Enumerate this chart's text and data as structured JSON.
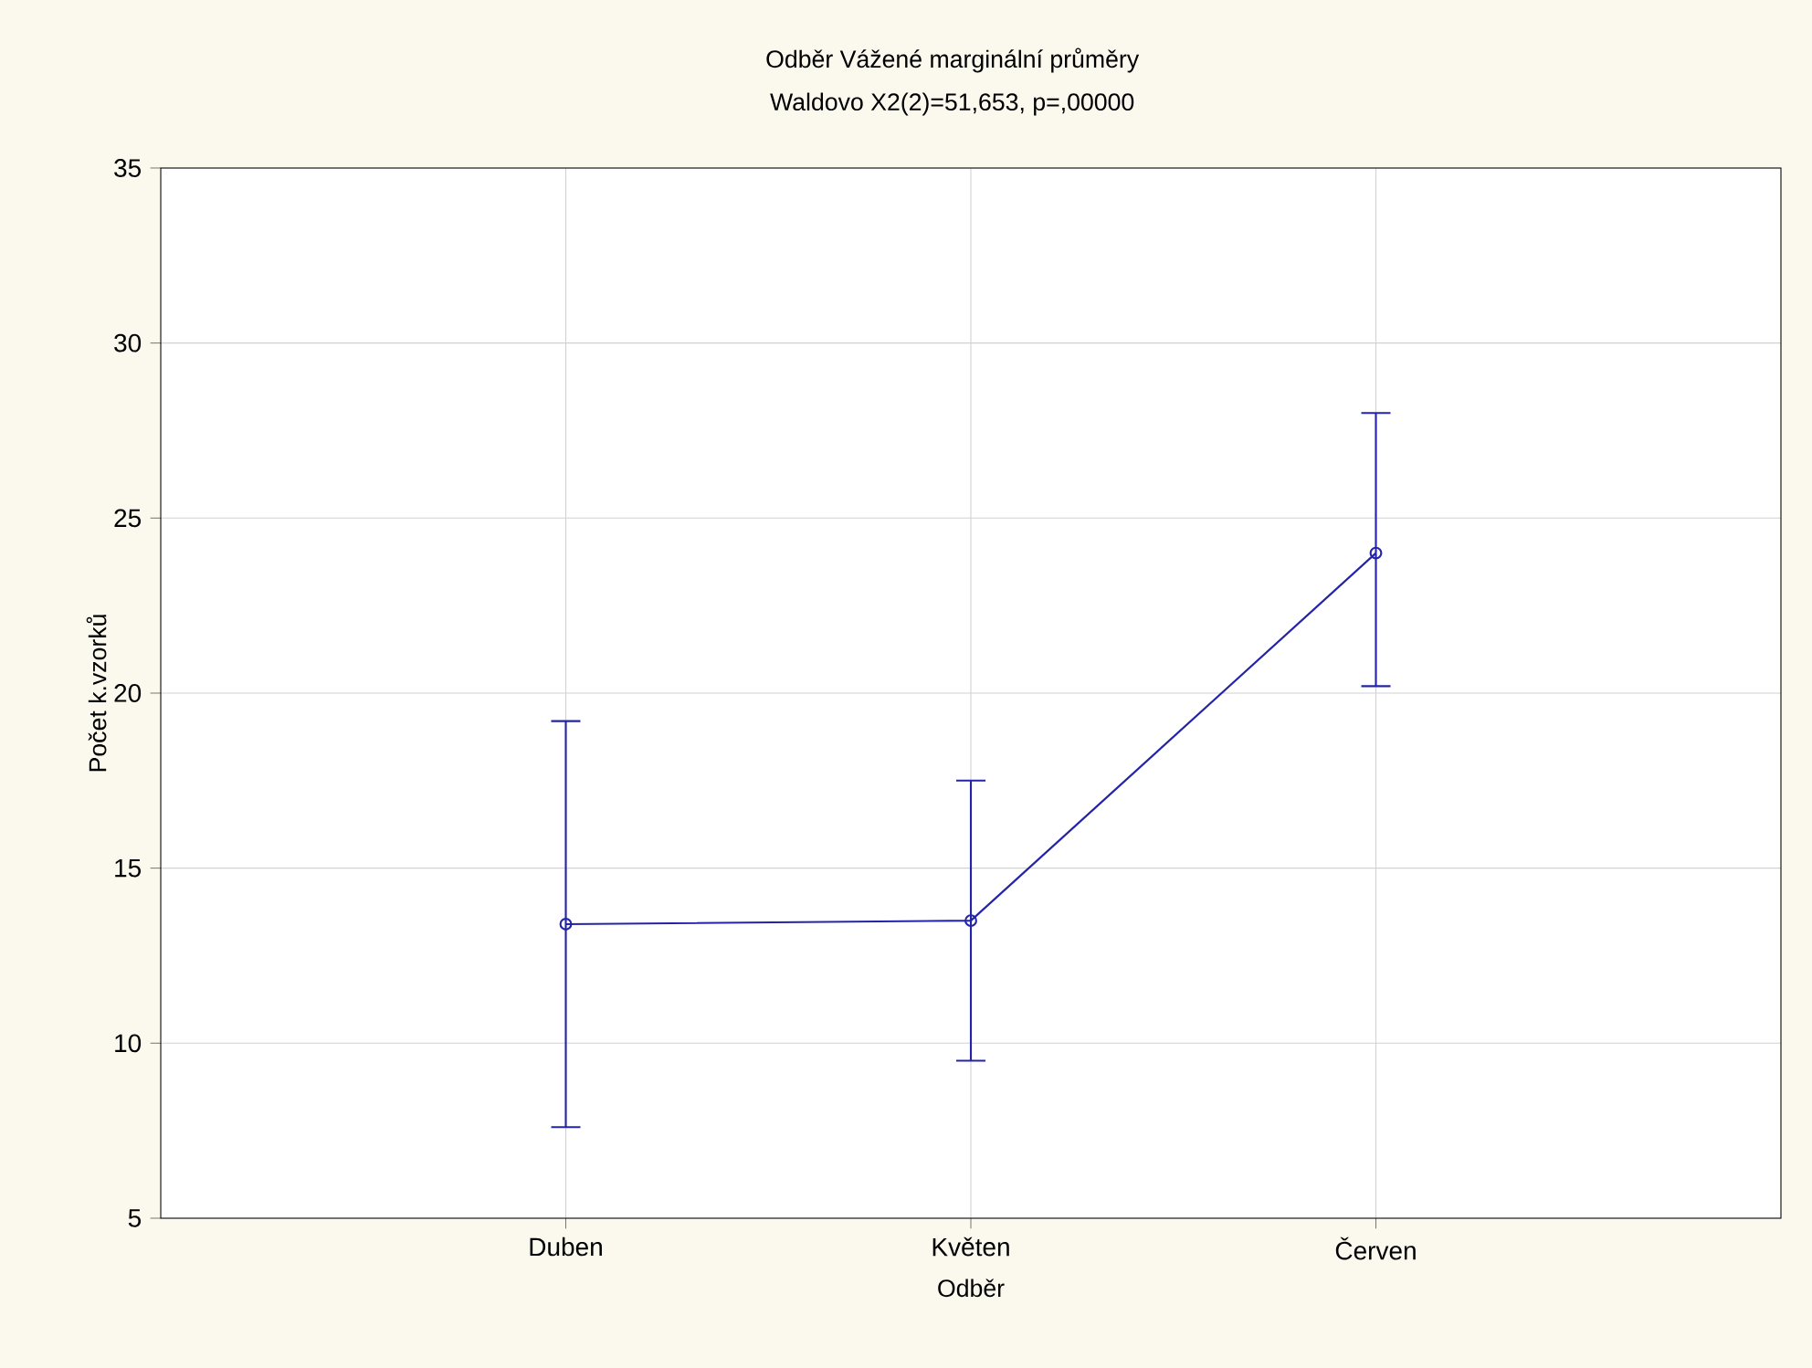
{
  "chart_data": {
    "type": "line",
    "title": "Odběr Vážené marginální průměry",
    "subtitle": "Waldovo  X2(2)=51,653, p=,00000",
    "xlabel": "Odběr",
    "ylabel": "Počet k.vzorků",
    "categories": [
      "Duben",
      "Květen",
      "Červen"
    ],
    "series": [
      {
        "color": "#2424a8",
        "values": [
          13.4,
          13.5,
          24.0
        ],
        "errors": [
          [
            7.6,
            19.2
          ],
          [
            9.5,
            17.5
          ],
          [
            20.2,
            28.0
          ]
        ]
      }
    ],
    "ylim": [
      5,
      35
    ],
    "yticks": [
      5,
      10,
      15,
      20,
      25,
      30,
      35
    ],
    "grid": true,
    "marker": "circle",
    "line_style": "solid"
  }
}
